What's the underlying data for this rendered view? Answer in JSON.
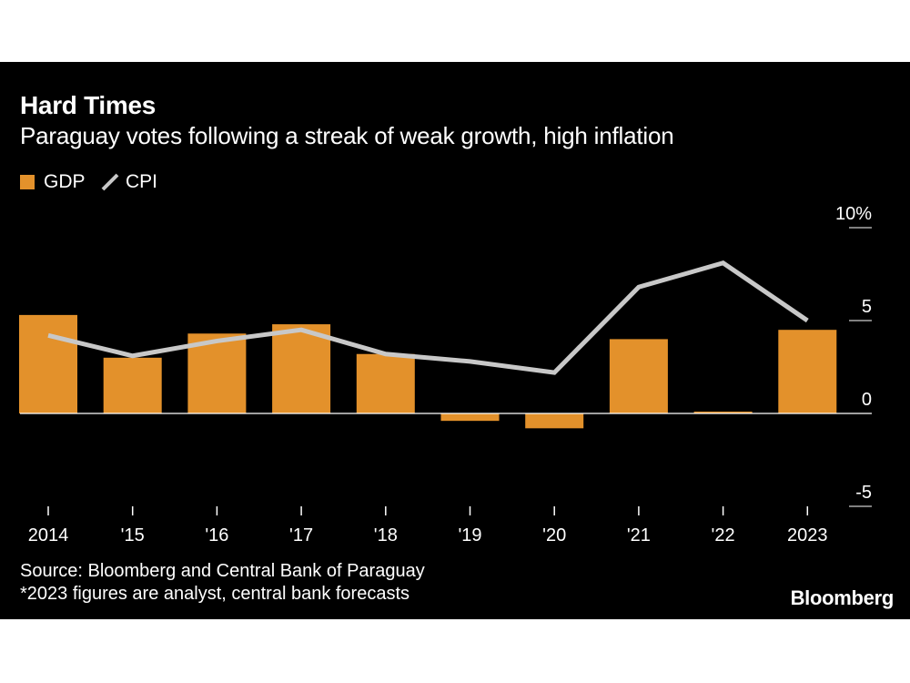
{
  "header": {
    "title": "Hard Times",
    "subtitle": "Paraguay votes following a streak of weak growth, high inflation"
  },
  "legend": {
    "gdp_label": "GDP",
    "cpi_label": "CPI"
  },
  "colors": {
    "gdp": "#E3912B",
    "cpi": "#C8C8C8",
    "background": "#000000",
    "text": "#FFFFFF"
  },
  "chart_data": {
    "type": "bar",
    "title": "Hard Times",
    "subtitle": "Paraguay votes following a streak of weak growth, high inflation",
    "categories": [
      "2014",
      "'15",
      "'16",
      "'17",
      "'18",
      "'19",
      "'20",
      "'21",
      "'22",
      "2023"
    ],
    "series": [
      {
        "name": "GDP",
        "kind": "bar",
        "values": [
          5.3,
          3.0,
          4.3,
          4.8,
          3.2,
          -0.4,
          -0.8,
          4.0,
          0.1,
          4.5
        ]
      },
      {
        "name": "CPI",
        "kind": "line",
        "values": [
          4.2,
          3.1,
          3.9,
          4.5,
          3.2,
          2.8,
          2.2,
          6.8,
          8.1,
          5.0
        ]
      }
    ],
    "y_ticks": [
      {
        "value": 10,
        "label": "10%"
      },
      {
        "value": 5,
        "label": "5"
      },
      {
        "value": 0,
        "label": "0"
      },
      {
        "value": -5,
        "label": "-5"
      }
    ],
    "ylim": [
      -5,
      10
    ],
    "axis_side": "right",
    "xlabel": "",
    "ylabel": ""
  },
  "footer": {
    "source": "Source: Bloomberg and Central Bank of Paraguay",
    "note": "*2023 figures are analyst, central bank forecasts",
    "brand": "Bloomberg"
  }
}
